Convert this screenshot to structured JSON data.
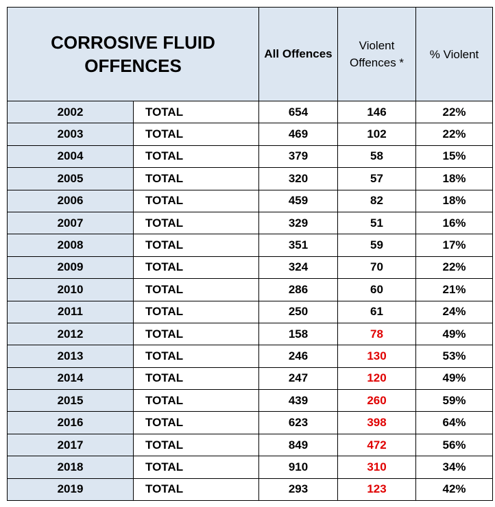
{
  "header": {
    "title": "CORROSIVE FLUID OFFENCES",
    "all_offences": "All Offences",
    "violent_offences": "Violent Offences *",
    "pct_violent": "% Violent"
  },
  "rows": [
    {
      "year": "2002",
      "label": "TOTAL",
      "all": "654",
      "violent": "146",
      "pct": "22%",
      "violent_highlight": false
    },
    {
      "year": "2003",
      "label": "TOTAL",
      "all": "469",
      "violent": "102",
      "pct": "22%",
      "violent_highlight": false
    },
    {
      "year": "2004",
      "label": "TOTAL",
      "all": "379",
      "violent": "58",
      "pct": "15%",
      "violent_highlight": false
    },
    {
      "year": "2005",
      "label": "TOTAL",
      "all": "320",
      "violent": "57",
      "pct": "18%",
      "violent_highlight": false
    },
    {
      "year": "2006",
      "label": "TOTAL",
      "all": "459",
      "violent": "82",
      "pct": "18%",
      "violent_highlight": false
    },
    {
      "year": "2007",
      "label": "TOTAL",
      "all": "329",
      "violent": "51",
      "pct": "16%",
      "violent_highlight": false
    },
    {
      "year": "2008",
      "label": "TOTAL",
      "all": "351",
      "violent": "59",
      "pct": "17%",
      "violent_highlight": false
    },
    {
      "year": "2009",
      "label": "TOTAL",
      "all": "324",
      "violent": "70",
      "pct": "22%",
      "violent_highlight": false
    },
    {
      "year": "2010",
      "label": "TOTAL",
      "all": "286",
      "violent": "60",
      "pct": "21%",
      "violent_highlight": false
    },
    {
      "year": "2011",
      "label": "TOTAL",
      "all": "250",
      "violent": "61",
      "pct": "24%",
      "violent_highlight": false
    },
    {
      "year": "2012",
      "label": "TOTAL",
      "all": "158",
      "violent": "78",
      "pct": "49%",
      "violent_highlight": true
    },
    {
      "year": "2013",
      "label": "TOTAL",
      "all": "246",
      "violent": "130",
      "pct": "53%",
      "violent_highlight": true
    },
    {
      "year": "2014",
      "label": "TOTAL",
      "all": "247",
      "violent": "120",
      "pct": "49%",
      "violent_highlight": true
    },
    {
      "year": "2015",
      "label": "TOTAL",
      "all": "439",
      "violent": "260",
      "pct": "59%",
      "violent_highlight": true
    },
    {
      "year": "2016",
      "label": "TOTAL",
      "all": "623",
      "violent": "398",
      "pct": "64%",
      "violent_highlight": true
    },
    {
      "year": "2017",
      "label": "TOTAL",
      "all": "849",
      "violent": "472",
      "pct": "56%",
      "violent_highlight": true
    },
    {
      "year": "2018",
      "label": "TOTAL",
      "all": "910",
      "violent": "310",
      "pct": "34%",
      "violent_highlight": true
    },
    {
      "year": "2019",
      "label": "TOTAL",
      "all": "293",
      "violent": "123",
      "pct": "42%",
      "violent_highlight": true
    }
  ],
  "colors": {
    "header_fill": "#dce6f1",
    "highlight_text": "#e00000"
  }
}
